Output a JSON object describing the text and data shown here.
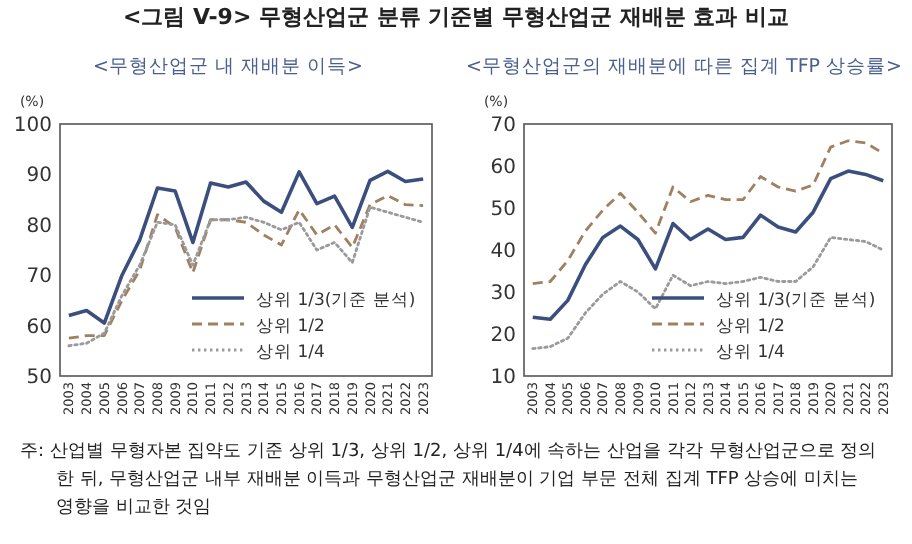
{
  "chart_data": [
    {
      "type": "line",
      "title": "<그림 V-9> 무형산업군 분류 기준별 무형산업군 재배분 효과 비교",
      "subtitle": "<무형산업군 내 재배분 이득>",
      "ylabel": "(%)",
      "categories": [
        "2003",
        "2004",
        "2005",
        "2006",
        "2007",
        "2008",
        "2009",
        "2010",
        "2011",
        "2012",
        "2013",
        "2014",
        "2015",
        "2016",
        "2017",
        "2018",
        "2019",
        "2020",
        "2021",
        "2022",
        "2023"
      ],
      "ylim": [
        50,
        100
      ],
      "yticks": [
        50,
        60,
        70,
        80,
        90,
        100
      ],
      "grid": false,
      "legend": "bottom right",
      "series": [
        {
          "name": "상위 1/3(기준 분석)",
          "color": "#3b4f7e",
          "line_style": "solid",
          "values": [
            62,
            63,
            60.5,
            70,
            77,
            87.3,
            86.7,
            76.5,
            88.3,
            87.5,
            88.5,
            84.7,
            82.5,
            90.5,
            84.2,
            85.7,
            79.5,
            88.8,
            90.6,
            88.6,
            89.1
          ]
        },
        {
          "name": "상위 1/2",
          "color": "#a08060",
          "line_style": "dashed",
          "values": [
            57.5,
            58,
            58,
            65,
            71,
            82,
            79.5,
            70.5,
            81,
            81,
            80.5,
            78,
            76,
            83,
            78,
            80,
            75.5,
            84,
            85.8,
            84,
            83.8
          ]
        },
        {
          "name": "상위 1/4",
          "color": "#9a9a9a",
          "line_style": "dotted",
          "values": [
            56,
            56.5,
            58.5,
            66,
            72,
            80.5,
            80,
            72,
            81,
            81,
            81.5,
            80.5,
            79,
            80.5,
            75,
            76.5,
            72.5,
            83.5,
            82.5,
            81.5,
            80.5
          ]
        }
      ]
    },
    {
      "type": "line",
      "subtitle": "<무형산업군의 재배분에 따른 집계 TFP 상승률>",
      "ylabel": "(%)",
      "categories": [
        "2003",
        "2004",
        "2005",
        "2006",
        "2007",
        "2008",
        "2009",
        "2010",
        "2011",
        "2012",
        "2013",
        "2014",
        "2015",
        "2016",
        "2017",
        "2018",
        "2019",
        "2020",
        "2021",
        "2022",
        "2023"
      ],
      "ylim": [
        10,
        70
      ],
      "yticks": [
        10,
        20,
        30,
        40,
        50,
        60,
        70
      ],
      "grid": false,
      "legend": "bottom right",
      "annotations": [
        "주: 산업별 무형자본 집약도 기준 상위 1/3, 상위 1/2, 상위 1/4에 속하는 산업을 각각 무형산업군으로 정의한 뒤, 무형산업군 내부 재배분 이득과 무형산업군 재배분이 기업 부문 전체 집계 TFP 상승에 미치는 영향을 비교한 것임"
      ],
      "series": [
        {
          "name": "상위 1/3(기준 분석)",
          "color": "#3b4f7e",
          "line_style": "solid",
          "values": [
            24,
            23.5,
            28,
            36.5,
            43,
            45.7,
            42.5,
            35.5,
            46.3,
            42.5,
            45,
            42.5,
            43,
            48.3,
            45.5,
            44.3,
            49,
            57,
            58.8,
            58,
            56.5
          ]
        },
        {
          "name": "상위 1/2",
          "color": "#a08060",
          "line_style": "dashed",
          "values": [
            32,
            32.5,
            37.5,
            44.5,
            49.5,
            53.5,
            49,
            44,
            55,
            51.5,
            53,
            52,
            52,
            57.5,
            55,
            54,
            55.5,
            64.5,
            66,
            65.5,
            63
          ]
        },
        {
          "name": "상위 1/4",
          "color": "#9a9a9a",
          "line_style": "dotted",
          "values": [
            16.5,
            17,
            19,
            25,
            29.5,
            32.5,
            30,
            26,
            34,
            31.5,
            32.5,
            32,
            32.5,
            33.5,
            32.5,
            32.5,
            36,
            43,
            42.5,
            42,
            40
          ]
        }
      ]
    }
  ]
}
